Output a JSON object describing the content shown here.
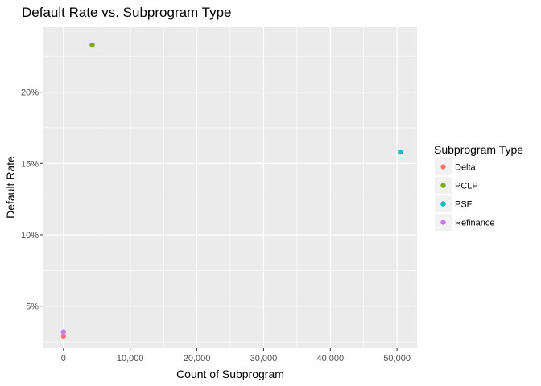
{
  "chart_data": {
    "type": "scatter",
    "title": "Default Rate vs. Subprogram Type",
    "xlabel": "Count of Subprogram",
    "ylabel": "Default Rate",
    "xlim": [
      -3000,
      53000
    ],
    "ylim": [
      2.05,
      24.6
    ],
    "x_ticks": [
      0,
      10000,
      20000,
      30000,
      40000,
      50000
    ],
    "x_tick_labels": [
      "0",
      "10,000",
      "20,000",
      "30,000",
      "40,000",
      "50,000"
    ],
    "y_ticks": [
      5,
      10,
      15,
      20
    ],
    "y_tick_labels": [
      "5%",
      "10%",
      "15%",
      "20%"
    ],
    "grid": true,
    "legend": {
      "title": "Subprogram Type",
      "position": "right",
      "entries": [
        "Delta",
        "PCLP",
        "PSF",
        "Refinance"
      ]
    },
    "series": [
      {
        "name": "Delta",
        "color": "#F8766D",
        "x": [
          0
        ],
        "y": [
          2.9
        ]
      },
      {
        "name": "PCLP",
        "color": "#7CAE00",
        "x": [
          4300
        ],
        "y": [
          23.3
        ]
      },
      {
        "name": "PSF",
        "color": "#00BFC4",
        "x": [
          50500
        ],
        "y": [
          15.8
        ]
      },
      {
        "name": "Refinance",
        "color": "#C77CFF",
        "x": [
          0
        ],
        "y": [
          3.2
        ]
      }
    ],
    "colors": {
      "panel_background": "#EBEBEB",
      "grid": "#FFFFFF",
      "legend_key_background": "#F2F2F2"
    }
  }
}
